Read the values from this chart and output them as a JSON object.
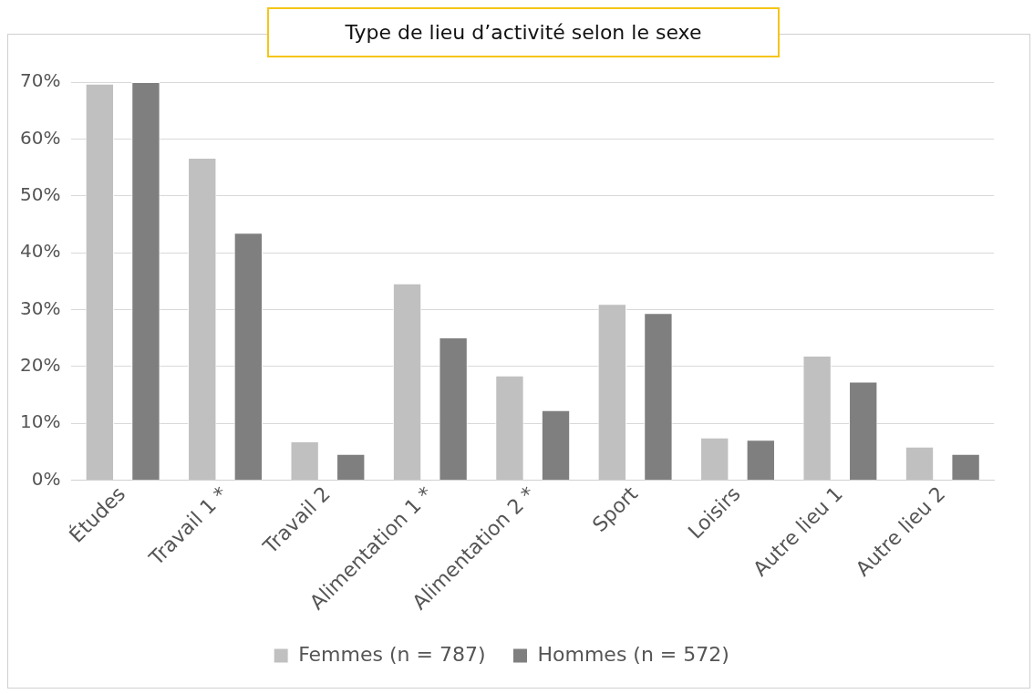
{
  "chart_data": {
    "type": "bar",
    "title": "Type de lieu d’activité selon le sexe",
    "categories": [
      "Études",
      "Travail 1 *",
      "Travail 2",
      "Alimentation 1 *",
      "Alimentation 2 *",
      "Sport",
      "Loisirs",
      "Autre lieu 1",
      "Autre lieu 2"
    ],
    "series": [
      {
        "name": "Femmes (n = 787)",
        "color": "#c0c0c0",
        "values": [
          69.7,
          56.7,
          6.8,
          34.6,
          18.4,
          31.0,
          7.5,
          21.9,
          5.9
        ]
      },
      {
        "name": "Hommes (n = 572)",
        "color": "#7f7f7f",
        "values": [
          70.0,
          43.5,
          4.6,
          25.1,
          12.3,
          29.4,
          7.1,
          17.3,
          4.6
        ]
      }
    ],
    "ylim": [
      0,
      70
    ],
    "yticks": [
      {
        "value": 0,
        "label": "0%"
      },
      {
        "value": 10,
        "label": "10%"
      },
      {
        "value": 20,
        "label": "20%"
      },
      {
        "value": 30,
        "label": "30%"
      },
      {
        "value": 40,
        "label": "40%"
      },
      {
        "value": 50,
        "label": "50%"
      },
      {
        "value": 60,
        "label": "60%"
      },
      {
        "value": 70,
        "label": "70%"
      }
    ],
    "grid": "y",
    "legend": "bottom"
  }
}
